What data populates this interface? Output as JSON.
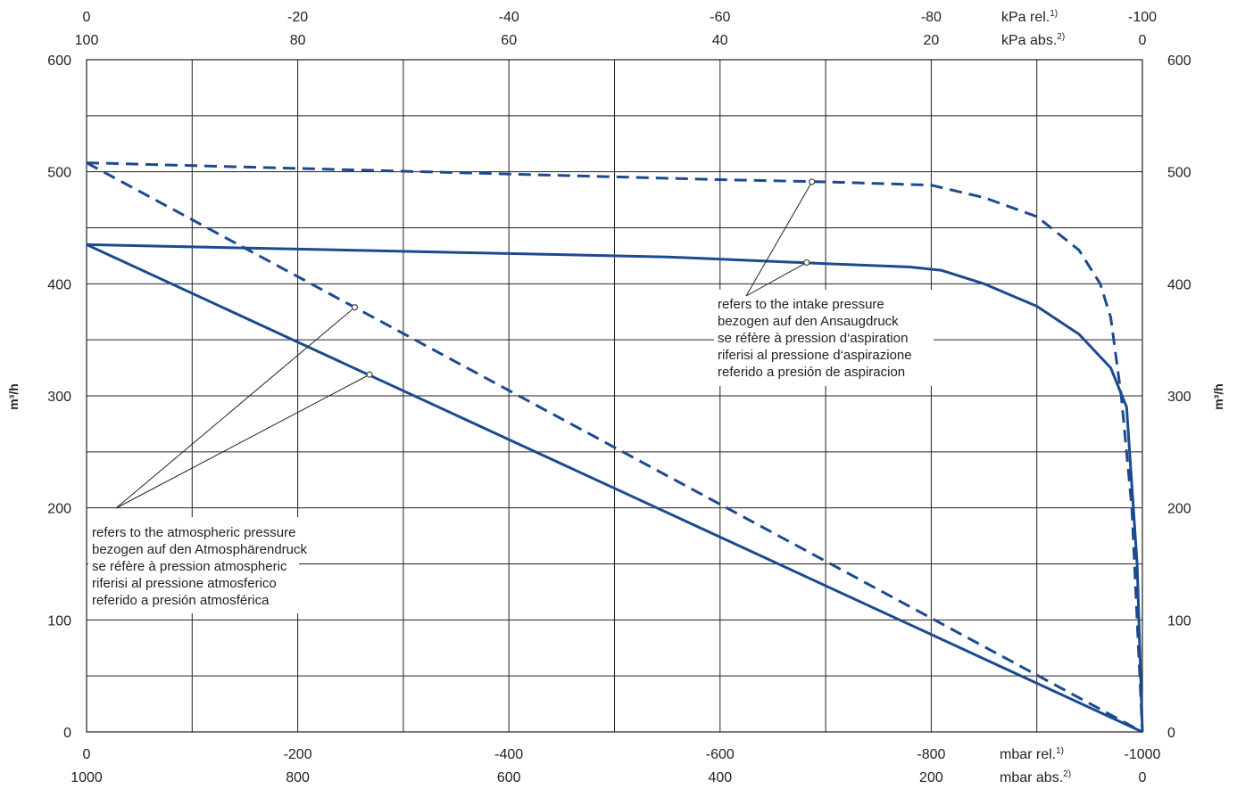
{
  "chart_data": {
    "type": "line",
    "title": "",
    "ylabel": "m³/h",
    "xlim": [
      0,
      -1000
    ],
    "ylim": [
      0,
      600
    ],
    "grid": true,
    "x_ticks_bottom_rel": [
      "0",
      "-200",
      "-400",
      "-600",
      "-800",
      "-1000"
    ],
    "x_ticks_bottom_abs": [
      "1000",
      "800",
      "600",
      "400",
      "200",
      "0"
    ],
    "x_ticks_top_rel": [
      "0",
      "-20",
      "-40",
      "-60",
      "-80",
      "-100"
    ],
    "x_ticks_top_abs": [
      "100",
      "80",
      "60",
      "40",
      "20",
      "0"
    ],
    "y_ticks": [
      "0",
      "100",
      "200",
      "300",
      "400",
      "500",
      "600"
    ],
    "unit_labels": {
      "mbar_rel": "mbar rel.",
      "mbar_rel_sup": "1)",
      "mbar_abs": "mbar abs.",
      "mbar_abs_sup": "2)",
      "kpa_rel": "kPa rel.",
      "kpa_rel_sup": "1)",
      "kpa_abs": "kPa abs.",
      "kpa_abs_sup": "2)"
    },
    "series": [
      {
        "style": "dashed",
        "color": "#1c4a8f",
        "points": [
          [
            0,
            508
          ],
          [
            -200,
            503
          ],
          [
            -400,
            498
          ],
          [
            -600,
            493
          ],
          [
            -700,
            491
          ],
          [
            -800,
            488
          ],
          [
            -850,
            477
          ],
          [
            -900,
            460
          ],
          [
            -940,
            430
          ],
          [
            -960,
            400
          ],
          [
            -970,
            370
          ],
          [
            -980,
            300
          ],
          [
            -990,
            200
          ],
          [
            -995,
            100
          ],
          [
            -1000,
            0
          ]
        ]
      },
      {
        "style": "solid",
        "color": "#1c4a8f",
        "points": [
          [
            0,
            435
          ],
          [
            -200,
            431
          ],
          [
            -400,
            427
          ],
          [
            -550,
            424
          ],
          [
            -700,
            418
          ],
          [
            -780,
            415
          ],
          [
            -810,
            412
          ],
          [
            -850,
            400
          ],
          [
            -900,
            380
          ],
          [
            -940,
            355
          ],
          [
            -970,
            325
          ],
          [
            -985,
            290
          ],
          [
            -995,
            150
          ],
          [
            -1000,
            0
          ]
        ]
      },
      {
        "style": "dashed",
        "color": "#1c4a8f",
        "points": [
          [
            0,
            508
          ],
          [
            -1000,
            0
          ]
        ]
      },
      {
        "style": "solid",
        "color": "#1c4a8f",
        "points": [
          [
            0,
            435
          ],
          [
            -1000,
            0
          ]
        ]
      }
    ],
    "annotations": [
      {
        "lines": [
          "refers to the intake pressure",
          "bezogen auf den Ansaugdruck",
          "se réfère à pression d‘aspiration",
          "riferisi al pressione d‘aspirazione",
          "referido a presión de aspiracion"
        ],
        "pointers": [
          [
            -687,
            491
          ],
          [
            -682,
            419
          ]
        ]
      },
      {
        "lines": [
          "refers to the atmospheric pressure",
          "bezogen auf den Atmosphärendruck",
          "se réfère à pression atmospheric",
          "riferisi al pressione atmosferico",
          "referido a presión atmosférica"
        ],
        "pointers": [
          [
            -254,
            379
          ],
          [
            -268,
            319
          ]
        ]
      }
    ]
  }
}
